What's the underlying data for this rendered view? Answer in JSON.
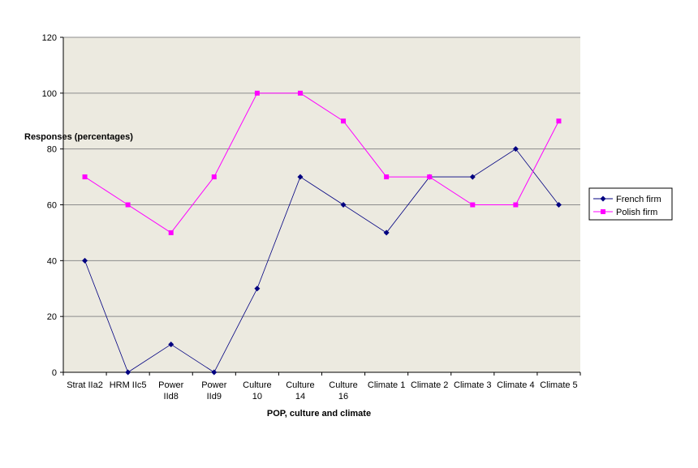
{
  "chart_data": {
    "type": "line",
    "title": "",
    "ylabel": "Responses (percentages)",
    "xlabel": "POP, culture and climate",
    "ylim": [
      0,
      120
    ],
    "yticks": [
      0,
      20,
      40,
      60,
      80,
      100,
      120
    ],
    "grid": true,
    "legend_position": "right",
    "categories": [
      [
        "Strat IIa2"
      ],
      [
        "HRM IIc5"
      ],
      [
        "Power",
        "IId8"
      ],
      [
        "Power",
        "IId9"
      ],
      [
        "Culture",
        "10"
      ],
      [
        "Culture",
        "14"
      ],
      [
        "Culture",
        "16"
      ],
      [
        "Climate 1"
      ],
      [
        "Climate 2"
      ],
      [
        "Climate 3"
      ],
      [
        "Climate 4"
      ],
      [
        "Climate 5"
      ]
    ],
    "series": [
      {
        "name": "French  firm",
        "color": "#000080",
        "marker": "diamond",
        "values": [
          40,
          0,
          10,
          0,
          30,
          70,
          60,
          50,
          70,
          70,
          80,
          60
        ]
      },
      {
        "name": "Polish firm",
        "color": "#ff00ff",
        "marker": "square",
        "values": [
          70,
          60,
          50,
          70,
          100,
          100,
          90,
          70,
          70,
          60,
          60,
          90
        ]
      }
    ],
    "colors": {
      "plot_background": "#eceae0",
      "gridline": "#8c8c8c",
      "axis": "#000000"
    }
  }
}
